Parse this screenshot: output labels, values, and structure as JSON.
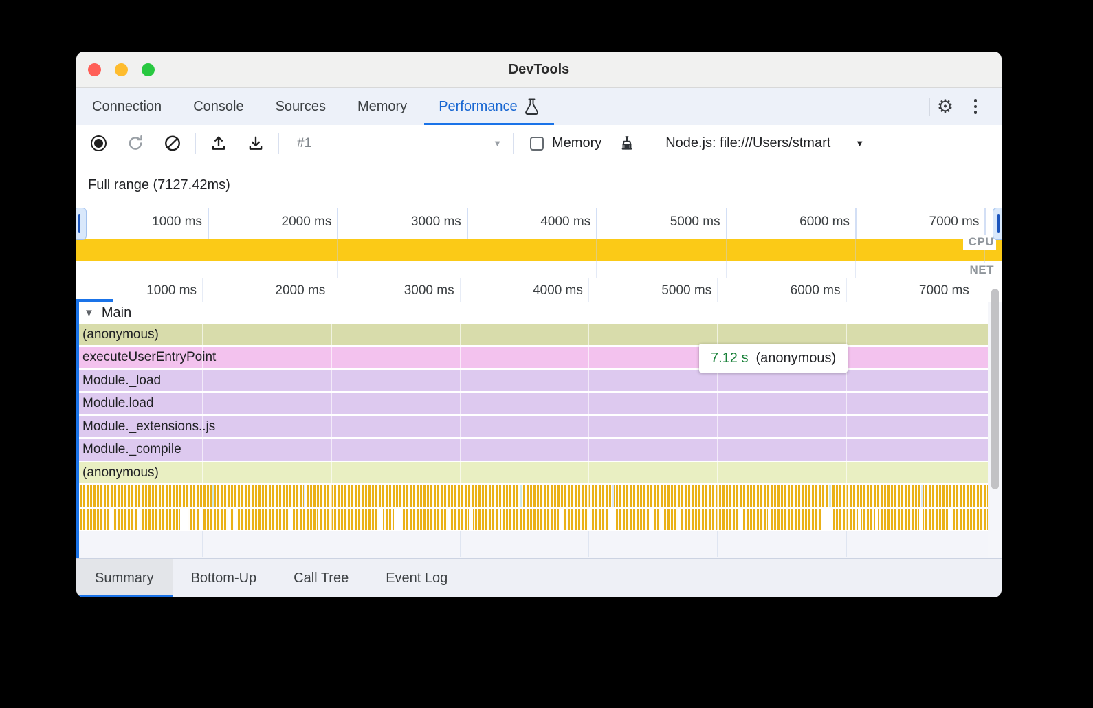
{
  "window": {
    "title": "DevTools"
  },
  "tabs": {
    "items": [
      {
        "label": "Connection"
      },
      {
        "label": "Console"
      },
      {
        "label": "Sources"
      },
      {
        "label": "Memory"
      },
      {
        "label": "Performance"
      }
    ],
    "active": "Performance"
  },
  "toolbar": {
    "session_label": "#1",
    "memory_label": "Memory",
    "target_label": "Node.js: file:///Users/stmart"
  },
  "overview": {
    "full_range_label": "Full range (7127.42ms)",
    "ticks": [
      "1000 ms",
      "2000 ms",
      "3000 ms",
      "4000 ms",
      "5000 ms",
      "6000 ms",
      "7000 ms"
    ],
    "cpu_label": "CPU",
    "net_label": "NET"
  },
  "flame": {
    "ticks": [
      "1000 ms",
      "2000 ms",
      "3000 ms",
      "4000 ms",
      "5000 ms",
      "6000 ms",
      "7000 ms"
    ],
    "track_label": "Main",
    "rows": [
      {
        "label": "(anonymous)",
        "color": "#d8dcab"
      },
      {
        "label": "executeUserEntryPoint",
        "color": "#f3c2ee"
      },
      {
        "label": "Module._load",
        "color": "#ddc9ef"
      },
      {
        "label": "Module.load",
        "color": "#ddc9ef"
      },
      {
        "label": "Module._extensions..js",
        "color": "#ddc9ef"
      },
      {
        "label": "Module._compile",
        "color": "#ddc9ef"
      },
      {
        "label": "(anonymous)",
        "color": "#e9efc2"
      }
    ],
    "tooltip": {
      "duration": "7.12 s",
      "label": "(anonymous)"
    }
  },
  "bottom_tabs": {
    "items": [
      {
        "label": "Summary"
      },
      {
        "label": "Bottom-Up"
      },
      {
        "label": "Call Tree"
      },
      {
        "label": "Event Log"
      }
    ],
    "active": "Summary"
  },
  "icons": {
    "expand_triangle": "▼",
    "dropdown_arrow": "▼",
    "settings_gear": "⚙"
  },
  "colors": {
    "accent_blue": "#1a73e8",
    "active_tab_blue": "#1967d2",
    "cpu_band_yellow": "#fbca17",
    "stripe_yellow": "#eab117",
    "tooltip_green": "#188038",
    "traffic_red": "#ff5f57",
    "traffic_yellow": "#febc2e",
    "traffic_green": "#28c840"
  }
}
